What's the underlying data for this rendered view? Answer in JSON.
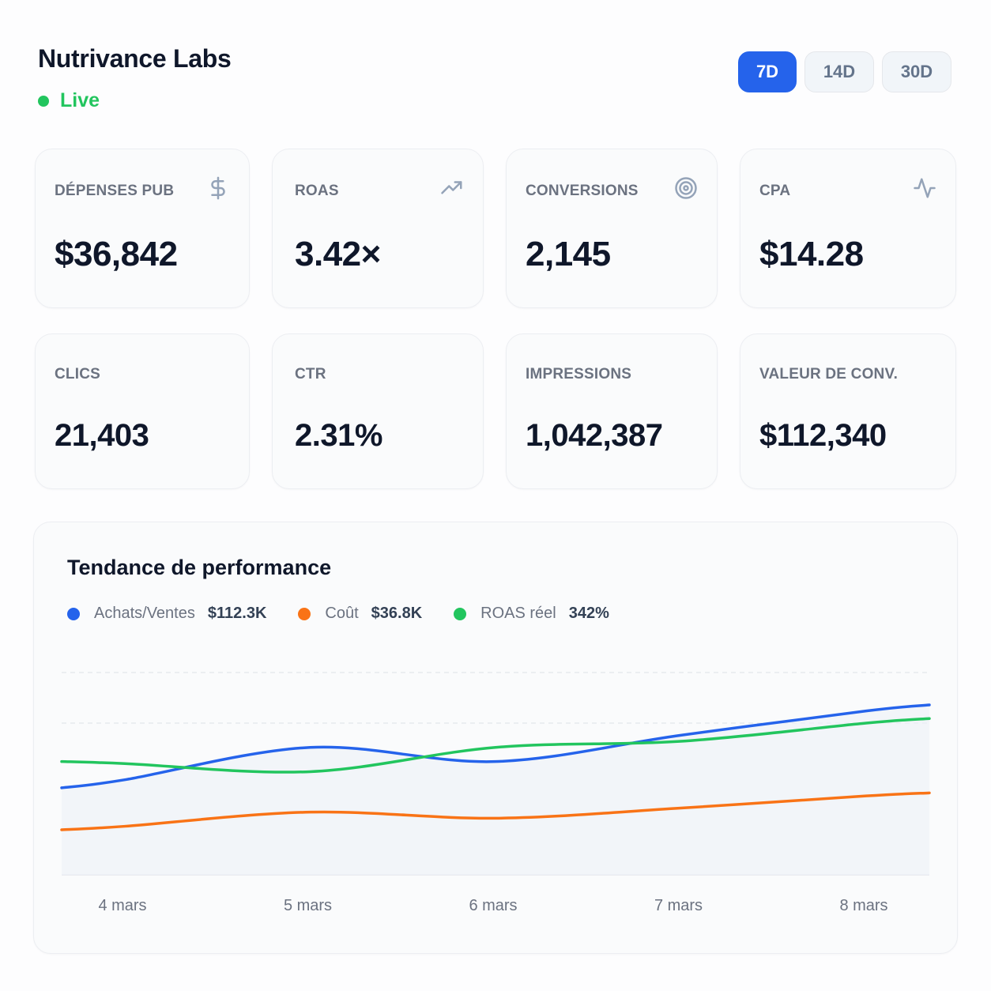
{
  "header": {
    "title": "Nutrivance Labs",
    "status": "Live"
  },
  "range": {
    "options": [
      "7D",
      "14D",
      "30D"
    ],
    "selected": "7D"
  },
  "kpis": [
    {
      "label": "DÉPENSES PUB",
      "value": "$36,842",
      "icon": "dollar-icon"
    },
    {
      "label": "ROAS",
      "value": "3.42×",
      "icon": "trending-up-icon"
    },
    {
      "label": "CONVERSIONS",
      "value": "2,145",
      "icon": "target-icon"
    },
    {
      "label": "CPA",
      "value": "$14.28",
      "icon": "activity-icon"
    },
    {
      "label": "CLICS",
      "value": "21,403"
    },
    {
      "label": "CTR",
      "value": "2.31%"
    },
    {
      "label": "IMPRESSIONS",
      "value": "1,042,387"
    },
    {
      "label": "VALEUR DE CONV.",
      "value": "$112,340"
    }
  ],
  "chart": {
    "title": "Tendance de performance",
    "legend": [
      {
        "name": "Achats/Ventes",
        "value": "$112.3K",
        "color": "#2563eb"
      },
      {
        "name": "Coût",
        "value": "$36.8K",
        "color": "#f97316"
      },
      {
        "name": "ROAS réel",
        "value": "342%",
        "color": "#22c55e"
      }
    ]
  },
  "chart_data": {
    "type": "line",
    "categories": [
      "4 mars",
      "5 mars",
      "6 mars",
      "7 mars",
      "8 mars"
    ],
    "ylim": [
      0,
      100
    ],
    "grid": "dashed horizontal",
    "series": [
      {
        "name": "Achats/Ventes",
        "color": "#2563eb",
        "values": [
          47,
          63,
          56,
          69,
          81
        ]
      },
      {
        "name": "Coût",
        "color": "#f97316",
        "values": [
          24,
          31,
          28,
          33,
          39
        ]
      },
      {
        "name": "ROAS réel",
        "color": "#22c55e",
        "values": [
          55,
          51,
          63,
          66,
          75
        ]
      }
    ]
  }
}
